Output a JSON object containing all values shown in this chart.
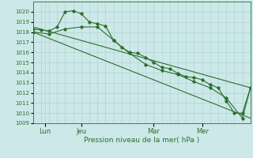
{
  "xlabel": "Pression niveau de la mer( hPa )",
  "xlim": [
    0,
    54
  ],
  "ylim": [
    1009,
    1021
  ],
  "yticks": [
    1009,
    1010,
    1011,
    1012,
    1013,
    1014,
    1015,
    1016,
    1017,
    1018,
    1019,
    1020
  ],
  "xtick_positions": [
    3,
    12,
    30,
    42
  ],
  "xtick_labels": [
    "Lun",
    "Jeu",
    "Mar",
    "Mer"
  ],
  "xtick_minor_step": 2,
  "bg_color": "#cce8e8",
  "grid_color": "#aacfcf",
  "line_color": "#2d6e2d",
  "series1_x": [
    0,
    2,
    4,
    6,
    8,
    10,
    12,
    14,
    16,
    18,
    20,
    22,
    24,
    26,
    28,
    30,
    32,
    34,
    36,
    38,
    40,
    42,
    44,
    46,
    48,
    50,
    52,
    54
  ],
  "series1_y": [
    1018.3,
    1018.2,
    1018.1,
    1018.5,
    1020.0,
    1020.1,
    1019.8,
    1019.0,
    1018.8,
    1018.6,
    1017.2,
    1016.5,
    1016.0,
    1015.9,
    1015.5,
    1015.0,
    1014.5,
    1014.4,
    1013.9,
    1013.6,
    1013.5,
    1013.3,
    1012.8,
    1012.5,
    1011.2,
    1010.0,
    1010.0,
    1012.5
  ],
  "series2_x": [
    0,
    4,
    8,
    12,
    16,
    20,
    24,
    28,
    32,
    36,
    40,
    44,
    48,
    52,
    54
  ],
  "series2_y": [
    1018.0,
    1017.8,
    1018.3,
    1018.5,
    1018.5,
    1017.2,
    1015.9,
    1014.8,
    1014.2,
    1013.8,
    1013.1,
    1012.5,
    1011.5,
    1009.5,
    1012.5
  ],
  "series3_x": [
    0,
    54
  ],
  "series3_y": [
    1018.5,
    1012.5
  ],
  "series4_x": [
    0,
    54
  ],
  "series4_y": [
    1018.0,
    1009.5
  ]
}
